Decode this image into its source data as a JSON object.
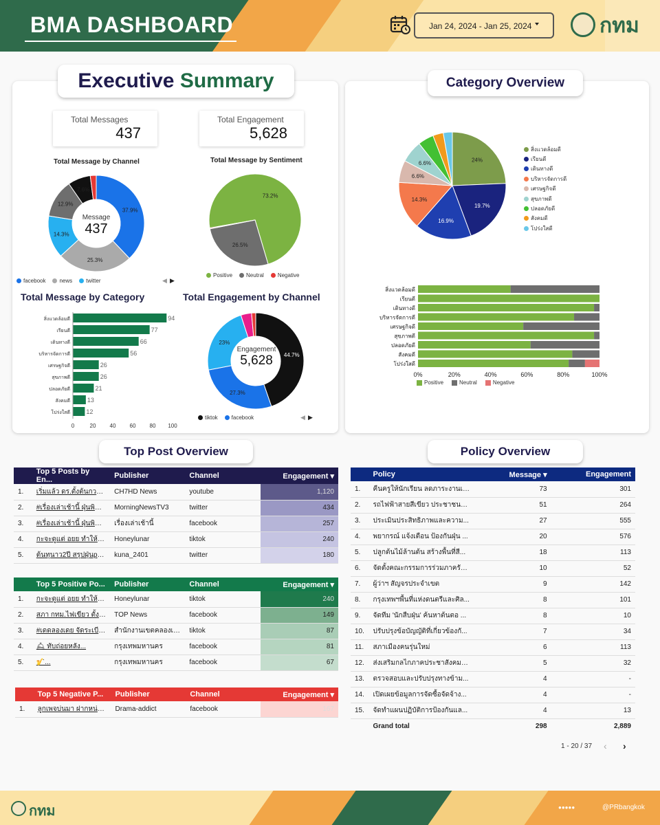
{
  "header": {
    "title": "BMA DASHBOARD",
    "date_range": "Jan 24, 2024 - Jan 25, 2024",
    "logo_text": "กทม"
  },
  "executive": {
    "title_a": "Executive",
    "title_b": "Summary",
    "total_messages_label": "Total Messages",
    "total_messages": "437",
    "total_engagement_label": "Total Engagement",
    "total_engagement": "5,628"
  },
  "charts": {
    "channel": {
      "title": "Total Message by Channel",
      "center_label": "Message",
      "center_value": "437",
      "legend": [
        "facebook",
        "news",
        "twitter"
      ]
    },
    "sentiment": {
      "title": "Total Message by Sentiment",
      "legend": [
        "Positive",
        "Neutral",
        "Negative"
      ]
    },
    "category": {
      "title": "Total Message by Category"
    },
    "engagement": {
      "title": "Total Engagement by Channel",
      "center_label": "Engagement",
      "center_value": "5,628",
      "legend": [
        "tiktok",
        "facebook"
      ]
    },
    "cat_overview": {
      "title": "Category Overview",
      "bar_legend": [
        "Positive",
        "Neutral",
        "Negative"
      ]
    }
  },
  "chart_data": [
    {
      "type": "pie",
      "title": "Total Message by Channel",
      "labels": [
        "facebook",
        "news",
        "twitter",
        "",
        "",
        ""
      ],
      "values": [
        37.9,
        25.3,
        14.3,
        12.9,
        7.6,
        2.0
      ],
      "colors": [
        "#1a73e8",
        "#aaaaaa",
        "#27b0f0",
        "#6e6e6e",
        "#111111",
        "#e53935"
      ],
      "value_labels": [
        "37.9%",
        "25.3%",
        "14.3%",
        "12.9%",
        "7.6%",
        ""
      ]
    },
    {
      "type": "pie",
      "title": "Total Message by Sentiment",
      "labels": [
        "Positive",
        "Neutral",
        "Negative"
      ],
      "values": [
        73.2,
        26.5,
        0.3
      ],
      "colors": [
        "#7cb342",
        "#6e6e6e",
        "#e53935"
      ],
      "value_labels": [
        "73.2%",
        "26.5%",
        ""
      ]
    },
    {
      "type": "bar",
      "title": "Total Message by Category",
      "categories": [
        "สิ่งแวดล้อมดี",
        "เรียนดี",
        "เดินทางดี",
        "บริหารจัดการดี",
        "เศรษฐกิจดี",
        "สุขภาพดี",
        "ปลอดภัยดี",
        "สังคมดี",
        "โปร่งใสดี"
      ],
      "values": [
        94,
        77,
        66,
        56,
        26,
        26,
        21,
        13,
        12
      ],
      "xticks": [
        "0",
        "20",
        "40",
        "60",
        "80",
        "100"
      ],
      "xlim": [
        0,
        100
      ],
      "color": "#137a4b"
    },
    {
      "type": "pie",
      "title": "Total Engagement by Channel",
      "labels": [
        "tiktok",
        "facebook",
        "",
        "",
        ""
      ],
      "values": [
        44.7,
        27.3,
        23,
        3.6,
        1.4
      ],
      "colors": [
        "#111111",
        "#1a73e8",
        "#27b0f0",
        "#e91e8c",
        "#e53935"
      ],
      "value_labels": [
        "44.7%",
        "27.3%",
        "23%",
        "",
        ""
      ]
    },
    {
      "type": "pie",
      "title": "Category Overview",
      "labels": [
        "สิ่งแวดล้อมดี",
        "เรียนดี",
        "เดินทางดี",
        "บริหารจัดการดี",
        "เศรษฐกิจดี",
        "สุขภาพดี",
        "ปลอดภัยดี",
        "สังคมดี",
        "โปร่งใสดี"
      ],
      "values": [
        24,
        19.7,
        16.9,
        14.3,
        6.6,
        6.6,
        4.7,
        3.1,
        2.7
      ],
      "colors": [
        "#7d9c4b",
        "#1a237e",
        "#1f3fb0",
        "#f4794c",
        "#d9b8ad",
        "#9fd3cf",
        "#43c033",
        "#f19a1c",
        "#6ac7e8"
      ],
      "value_labels": [
        "24%",
        "19.7%",
        "16.9%",
        "14.3%",
        "6.6%",
        "6.6%",
        "",
        "",
        ""
      ]
    },
    {
      "type": "bar",
      "title": "",
      "stacked": true,
      "horizontal": true,
      "categories": [
        "สิ่งแวดล้อมดี",
        "เรียนดี",
        "เดินทางดี",
        "บริหารจัดการดี",
        "เศรษฐกิจดี",
        "สุขภาพดี",
        "ปลอดภัยดี",
        "สังคมดี",
        "โปร่งใสดี"
      ],
      "series": [
        {
          "name": "Positive",
          "values": [
            51,
            100,
            97,
            86,
            58,
            97,
            62,
            85,
            83
          ],
          "color": "#7cb342"
        },
        {
          "name": "Neutral",
          "values": [
            49,
            0,
            3,
            14,
            42,
            3,
            38,
            15,
            9
          ],
          "color": "#6e6e6e"
        },
        {
          "name": "Negative",
          "values": [
            0,
            0,
            0,
            0,
            0,
            0,
            0,
            0,
            8
          ],
          "color": "#e57373"
        }
      ],
      "xticks": [
        "0%",
        "20%",
        "40%",
        "60%",
        "80%",
        "100%"
      ]
    }
  ],
  "top_posts": {
    "title": "Top Post Overview",
    "top5": {
      "cols": [
        "Top 5 Posts by En...",
        "Publisher",
        "Channel",
        "Engagement"
      ],
      "rows": [
        [
          "1.",
          "เริ่มแล้ว ดร.ตั้งต้นกวดสินฯ...",
          "CH7HD News",
          "youtube",
          "1,120"
        ],
        [
          "2.",
          "#เรื่องเล่าเช้านี้ ฝุ่นพิษ PM 2...",
          "MorningNewsTV3",
          "twitter",
          "434"
        ],
        [
          "3.",
          "#เรื่องเล่าเช้านี้ ฝุ่นพิษ PM 2...",
          "เรื่องเล่าเช้านี้",
          "facebook",
          "257"
        ],
        [
          "4.",
          "กะจะดูแต่ อยย ทำให้ได้เจอ...",
          "Honeylunar",
          "tiktok",
          "240"
        ],
        [
          "5.",
          "ต้นทุนาว2ปี สรุปฝุ่นpm2,...",
          "kuna_2401",
          "twitter",
          "180"
        ]
      ]
    },
    "positive": {
      "cols": [
        "Top 5 Positive Po...",
        "Publisher",
        "Channel",
        "Engagement"
      ],
      "rows": [
        [
          "1.",
          "กะจะดูแต่ อยย ทำให้ได้เจอ...",
          "Honeylunar",
          "tiktok",
          "240"
        ],
        [
          "2.",
          "สภา กทม.ไฟเขียว ตั้งกมธ...",
          "TOP News",
          "facebook",
          "149"
        ],
        [
          "3.",
          "#เดดลองเดย จัดระเบียบ...",
          "สำนักงานเขตคลองเตย",
          "tiktok",
          "87"
        ],
        [
          "4.",
          "&#128718; ทับถ่อยหลัง...",
          "กรุงเทพมหานคร",
          "facebook",
          "81"
        ],
        [
          "5.",
          "&#127927;&#12779...",
          "กรุงเทพมหานคร",
          "facebook",
          "67"
        ]
      ]
    },
    "negative": {
      "cols": [
        "Top 5 Negative P...",
        "Publisher",
        "Channel",
        "Engagement"
      ],
      "rows": [
        [
          "1.",
          "ลูกเพจบ่นมา ฝากหน่วยงาน...",
          "Drama-addict",
          "facebook",
          "167"
        ]
      ]
    }
  },
  "policy": {
    "title": "Policy Overview",
    "cols": [
      "Policy",
      "Message",
      "Engagement"
    ],
    "rows": [
      [
        "1.",
        "คืนครูให้นักเรียน ลดภาระงานเอ...",
        "73",
        "301"
      ],
      [
        "2.",
        "รถไฟฟ้าสายสีเขียว ประชาชนต์...",
        "51",
        "264"
      ],
      [
        "3.",
        "ประเมินประสิทธิภาพและความ...",
        "27",
        "555"
      ],
      [
        "4.",
        "พยากรณ์ แจ้งเตือน ป้องกันฝุ่น ...",
        "20",
        "576"
      ],
      [
        "5.",
        "ปลูกต้นไม้ล้านต้น สร้างพื้นที่สี...",
        "18",
        "113"
      ],
      [
        "6.",
        "จัดตั้งคณะกรรมการร่วมภาครัฐแ...",
        "10",
        "52"
      ],
      [
        "7.",
        "ผู้ว่าฯ สัญจรประจำเขต",
        "9",
        "142"
      ],
      [
        "8.",
        "กรุงเทพฯพื้นที่แห่งดนตรีและศิล...",
        "8",
        "101"
      ],
      [
        "9.",
        "จัดทีม 'นักสืบฝุ่น' ค้นหาต้นตอ ...",
        "8",
        "10"
      ],
      [
        "10.",
        "ปรับปรุงข้อบัญญัติที่เกี่ยวข้องกั...",
        "7",
        "34"
      ],
      [
        "11.",
        "สภาเมืองคนรุ่นใหม่",
        "6",
        "113"
      ],
      [
        "12.",
        "ส่งเสริมกลไกภาคประชาสังคมสุข...",
        "5",
        "32"
      ],
      [
        "13.",
        "ตรวจสอบและปรับปรุงทางข้าม...",
        "4",
        "-"
      ],
      [
        "14.",
        "เปิดเผยข้อมูลการจัดซื้อจัดจ้าง...",
        "4",
        "-"
      ],
      [
        "15.",
        "จัดทำแผนปฏิบัติการป้องกันแล...",
        "4",
        "13"
      ]
    ],
    "total_label": "Grand total",
    "total_messages": "298",
    "total_engagement": "2,889",
    "pagination": "1 - 20 / 37"
  },
  "footer": {
    "logo_text": "กทม",
    "handle": "@PRbangkok"
  },
  "colors": {
    "dark_green": "#2f6b4b",
    "navy": "#1f1b4d",
    "policy_blue": "#0d2a80",
    "positive_green": "#137a4b",
    "negative_red": "#e53935"
  }
}
